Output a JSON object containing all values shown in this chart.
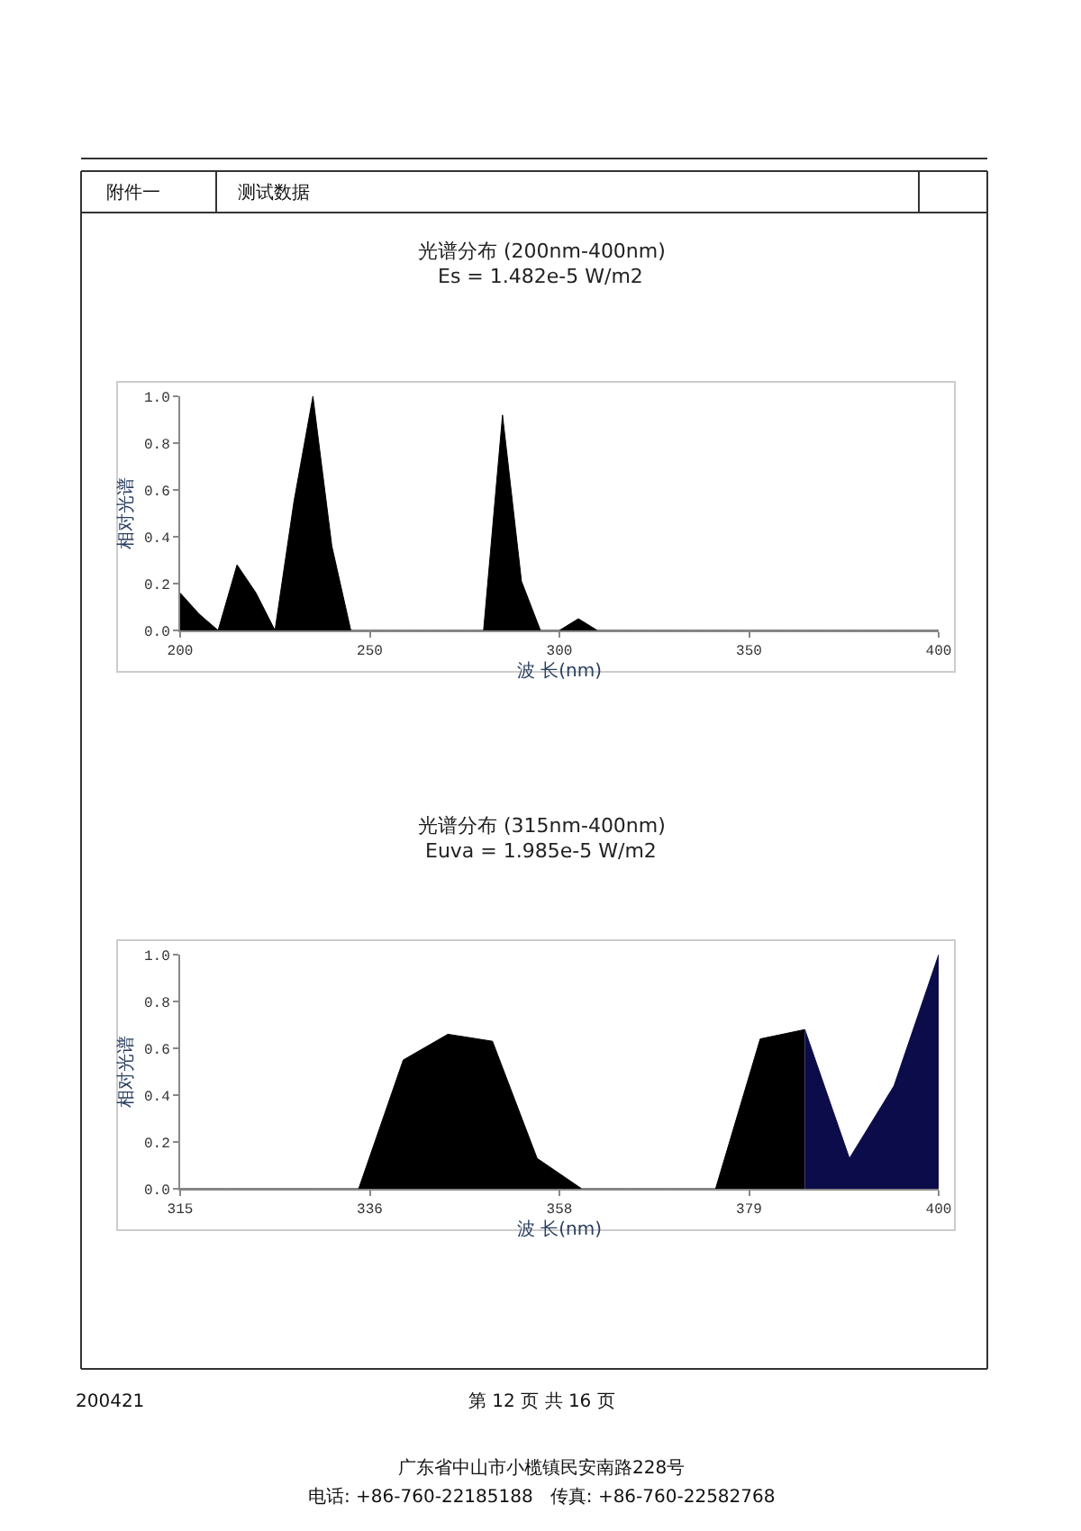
{
  "chart_data": [
    {
      "type": "area",
      "title": "光谱分布 (200nm-400nm)",
      "subtitle": "Es = 1.482e-5 W/m2",
      "xlabel": "波 长(nm)",
      "ylabel": "相对光谱",
      "annotations": [
        "附件一",
        "测试数据"
      ],
      "series": [
        {
          "color": "#000000",
          "x": [
            200,
            205,
            210,
            215,
            220,
            225,
            230,
            235,
            240,
            245,
            250,
            255,
            260,
            265,
            270,
            275,
            280,
            285,
            290,
            295,
            300,
            305,
            310,
            315,
            320,
            325,
            330,
            335,
            340,
            345,
            350,
            355,
            360,
            365,
            370,
            375,
            380,
            385,
            390,
            395,
            400
          ],
          "values": [
            0.16,
            0.07,
            0,
            0.28,
            0.16,
            0,
            0.55,
            1.0,
            0.36,
            0,
            0,
            0,
            0,
            0,
            0,
            0,
            0,
            0.92,
            0.21,
            0,
            0,
            0.05,
            0,
            0,
            0,
            0,
            0,
            0,
            0,
            0,
            0,
            0,
            0,
            0,
            0,
            0,
            0,
            0,
            0,
            0,
            0
          ]
        }
      ],
      "xlim": [
        200,
        400
      ],
      "xticks": [
        200,
        250,
        300,
        350,
        400
      ],
      "ylim": [
        0,
        1
      ],
      "yticks": [
        {
          "value": 0,
          "label": "0.0"
        },
        {
          "value": 0.2,
          "label": "0.2"
        },
        {
          "value": 0.4,
          "label": "0.4"
        },
        {
          "value": 0.6,
          "label": "0.6"
        },
        {
          "value": 0.8,
          "label": "0.8"
        },
        {
          "value": 1,
          "label": "1.0"
        }
      ],
      "grid": false
    },
    {
      "type": "area",
      "title": "光谱分布 (315nm-400nm)",
      "subtitle": "Euva = 1.985e-5 W/m2",
      "xlabel": "波 长(nm)",
      "ylabel": "相对光谱",
      "annotations": [
        "200421",
        "第 12 页 共 16 页",
        "广东省中山市小榄镇民安南路228号",
        "电话: +86-760-22185188   传真: +86-760-22582768"
      ],
      "series": [
        {
          "color": "#000000",
          "x": [
            315,
            320,
            325,
            330,
            335,
            340,
            345,
            350,
            355,
            360,
            365,
            370,
            375,
            380,
            385
          ],
          "values": [
            0,
            0,
            0,
            0,
            0,
            0.55,
            0.66,
            0.63,
            0.13,
            0,
            0,
            0,
            0,
            0.64,
            0.68
          ]
        },
        {
          "color": "#0c0c4a",
          "x": [
            385,
            390,
            395,
            400
          ],
          "values": [
            0.68,
            0.13,
            0.44,
            1.0
          ]
        }
      ],
      "xlim": [
        315,
        400
      ],
      "xticks": [
        315,
        {
          "value": 336.25,
          "label": "336"
        },
        {
          "value": 357.5,
          "label": "358"
        },
        {
          "value": 378.75,
          "label": "379"
        },
        400
      ],
      "ylim": [
        0,
        1
      ],
      "yticks": [
        {
          "value": 0,
          "label": "0.0"
        },
        {
          "value": 0.2,
          "label": "0.2"
        },
        {
          "value": 0.4,
          "label": "0.4"
        },
        {
          "value": 0.6,
          "label": "0.6"
        },
        {
          "value": 0.8,
          "label": "0.8"
        },
        {
          "value": 1,
          "label": "1.0"
        }
      ],
      "grid": false
    }
  ]
}
